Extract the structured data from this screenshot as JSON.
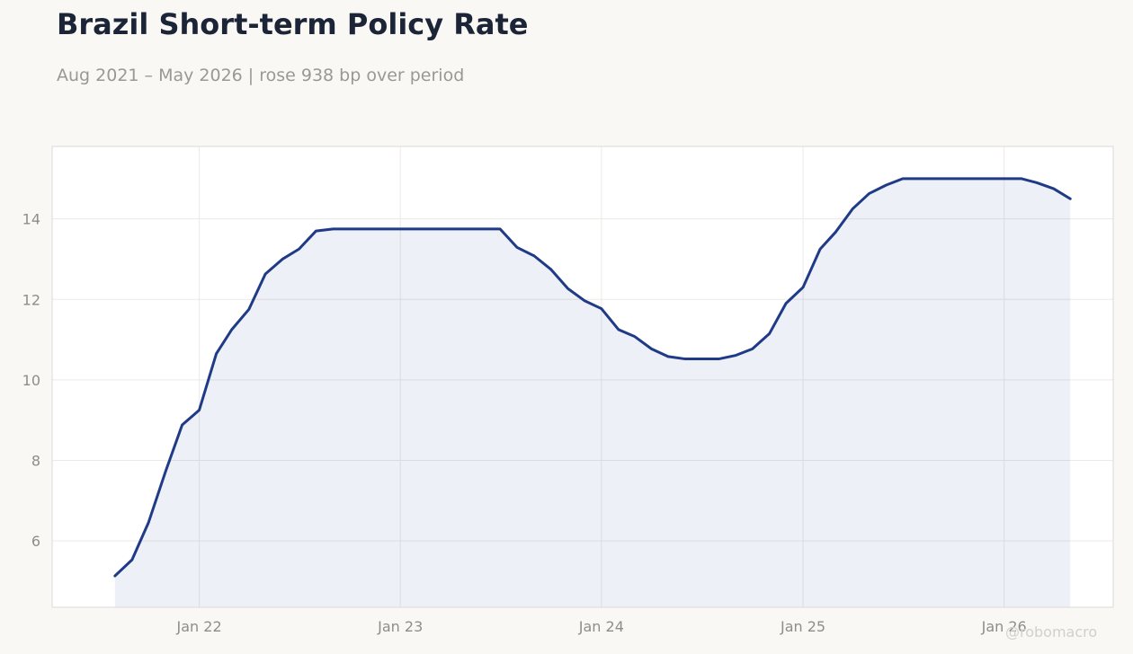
{
  "title": "Brazil Short-term Policy Rate",
  "subtitle": "Aug 2021 – May 2026 | rose 938 bp over period",
  "watermark": "@robomacro",
  "colors": {
    "line": "#1f3a87",
    "fill": "#1f3a87",
    "background": "#f9f8f5",
    "plot_background": "#ffffff",
    "grid": "#eceae6",
    "axis_text": "#8f8d87"
  },
  "chart_data": {
    "type": "area",
    "title": "Brazil Short-term Policy Rate",
    "subtitle": "Aug 2021 – May 2026 | rose 938 bp over period",
    "xlabel": "",
    "ylabel": "",
    "x_ticks": [
      {
        "date": "2022-01-01",
        "label": "Jan 22"
      },
      {
        "date": "2023-01-01",
        "label": "Jan 23"
      },
      {
        "date": "2024-01-01",
        "label": "Jan 24"
      },
      {
        "date": "2025-01-01",
        "label": "Jan 25"
      },
      {
        "date": "2026-01-01",
        "label": "Jan 26"
      }
    ],
    "y_ticks": [
      6,
      8,
      10,
      12,
      14
    ],
    "xlim": [
      "2021-04-09",
      "2026-07-18"
    ],
    "ylim": [
      4.35,
      15.8
    ],
    "grid": true,
    "legend": "none",
    "series": [
      {
        "points": [
          [
            "2021-08-01",
            5.13
          ],
          [
            "2021-09-01",
            5.53
          ],
          [
            "2021-10-01",
            6.46
          ],
          [
            "2021-11-01",
            7.73
          ],
          [
            "2021-12-01",
            8.88
          ],
          [
            "2022-01-01",
            9.25
          ],
          [
            "2022-02-01",
            10.65
          ],
          [
            "2022-03-01",
            11.25
          ],
          [
            "2022-04-01",
            11.75
          ],
          [
            "2022-05-01",
            12.63
          ],
          [
            "2022-06-01",
            13.0
          ],
          [
            "2022-07-01",
            13.25
          ],
          [
            "2022-08-01",
            13.7
          ],
          [
            "2022-09-01",
            13.75
          ],
          [
            "2022-10-01",
            13.75
          ],
          [
            "2022-11-01",
            13.75
          ],
          [
            "2022-12-01",
            13.75
          ],
          [
            "2023-01-01",
            13.75
          ],
          [
            "2023-02-01",
            13.75
          ],
          [
            "2023-03-01",
            13.75
          ],
          [
            "2023-04-01",
            13.75
          ],
          [
            "2023-05-01",
            13.75
          ],
          [
            "2023-06-01",
            13.75
          ],
          [
            "2023-07-01",
            13.75
          ],
          [
            "2023-08-01",
            13.29
          ],
          [
            "2023-09-01",
            13.08
          ],
          [
            "2023-10-01",
            12.75
          ],
          [
            "2023-11-01",
            12.27
          ],
          [
            "2023-12-01",
            11.97
          ],
          [
            "2024-01-01",
            11.77
          ],
          [
            "2024-02-01",
            11.25
          ],
          [
            "2024-03-01",
            11.08
          ],
          [
            "2024-04-01",
            10.77
          ],
          [
            "2024-05-01",
            10.58
          ],
          [
            "2024-06-01",
            10.52
          ],
          [
            "2024-07-01",
            10.52
          ],
          [
            "2024-08-01",
            10.52
          ],
          [
            "2024-09-01",
            10.61
          ],
          [
            "2024-10-01",
            10.77
          ],
          [
            "2024-11-01",
            11.15
          ],
          [
            "2024-12-01",
            11.9
          ],
          [
            "2025-01-01",
            12.3
          ],
          [
            "2025-02-01",
            13.25
          ],
          [
            "2025-03-01",
            13.67
          ],
          [
            "2025-04-01",
            14.25
          ],
          [
            "2025-05-01",
            14.63
          ],
          [
            "2025-06-01",
            14.84
          ],
          [
            "2025-07-01",
            15.0
          ],
          [
            "2025-08-01",
            15.0
          ],
          [
            "2025-09-01",
            15.0
          ],
          [
            "2025-10-01",
            15.0
          ],
          [
            "2025-11-01",
            15.0
          ],
          [
            "2025-12-01",
            15.0
          ],
          [
            "2026-01-01",
            15.0
          ],
          [
            "2026-02-01",
            15.0
          ],
          [
            "2026-03-01",
            14.9
          ],
          [
            "2026-04-01",
            14.75
          ],
          [
            "2026-05-01",
            14.5
          ]
        ]
      }
    ]
  }
}
